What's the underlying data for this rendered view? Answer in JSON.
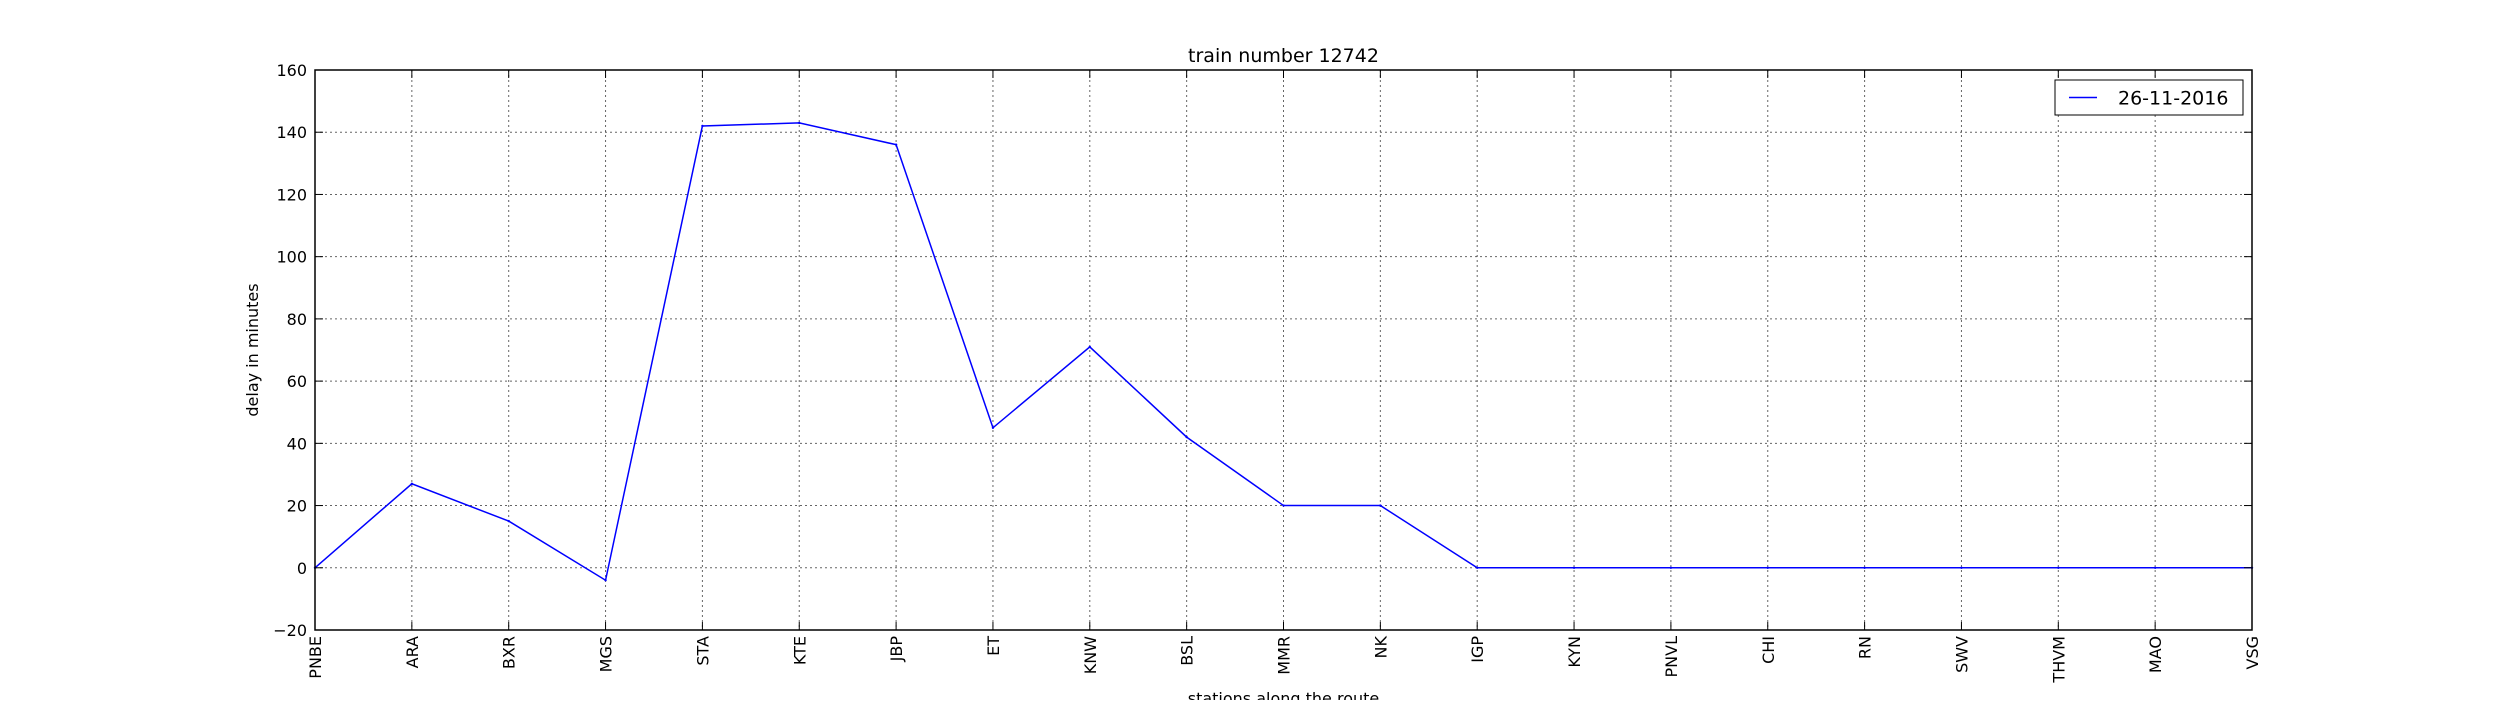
{
  "chart_data": {
    "type": "line",
    "title": "train number 12742",
    "xlabel": "stations along the route",
    "ylabel": "delay in minutes",
    "categories": [
      "PNBE",
      "ARA",
      "BXR",
      "MGS",
      "STA",
      "KTE",
      "JBP",
      "ET",
      "KNW",
      "BSL",
      "MMR",
      "NK",
      "IGP",
      "KYN",
      "PNVL",
      "CHI",
      "RN",
      "SWV",
      "THVM",
      "MAO",
      "VSG"
    ],
    "ylim": [
      -20,
      160
    ],
    "yticks": [
      -20,
      0,
      20,
      40,
      60,
      80,
      100,
      120,
      140,
      160
    ],
    "grid": true,
    "legend_position": "top-right",
    "series": [
      {
        "name": "26-11-2016",
        "color": "#0000ff",
        "values": [
          0,
          27,
          15,
          -4,
          142,
          143,
          136,
          45,
          71,
          42,
          20,
          20,
          0,
          0,
          0,
          0,
          0,
          0,
          0,
          0,
          0
        ]
      }
    ]
  }
}
